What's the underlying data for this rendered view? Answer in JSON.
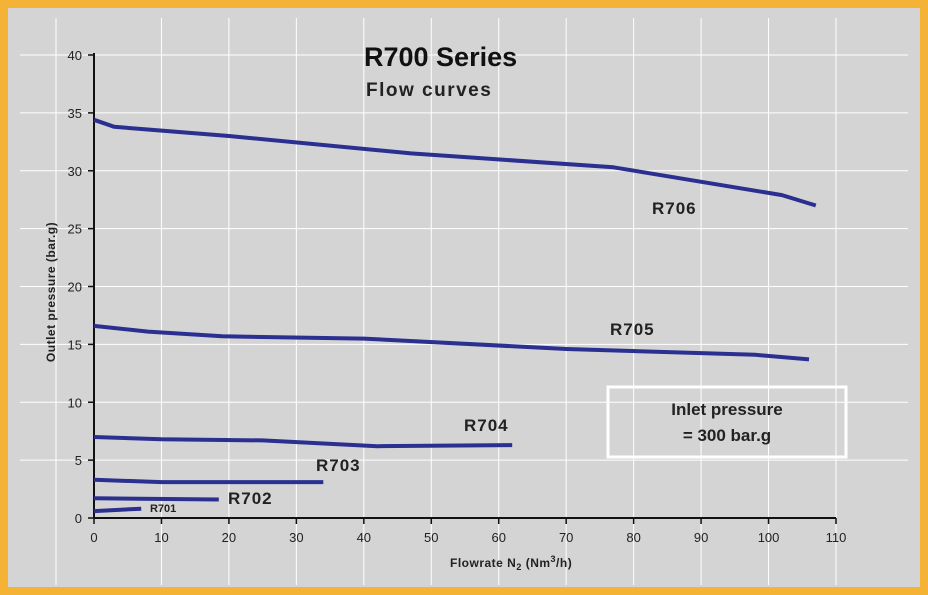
{
  "chart_data": {
    "type": "line",
    "title": "R700 Series",
    "subtitle": "Flow curves",
    "xlabel": "Flowrate N",
    "xlabel_subscript": "2",
    "xlabel_unit_prefix": " (Nm",
    "xlabel_unit_sup": "3",
    "xlabel_unit_suffix": "/h)",
    "ylabel": "Outlet pressure (bar.g)",
    "xlim": [
      0,
      110
    ],
    "ylim": [
      0,
      40
    ],
    "xticks": [
      0,
      10,
      20,
      30,
      40,
      50,
      60,
      70,
      80,
      90,
      100,
      110
    ],
    "yticks": [
      0,
      5,
      10,
      15,
      20,
      25,
      30,
      35,
      40
    ],
    "grid": true,
    "annotation": {
      "line1": "Inlet pressure",
      "line2": "= 300 bar.g"
    },
    "series": [
      {
        "name": "R706",
        "x": [
          0,
          3,
          20,
          47,
          77,
          102,
          107
        ],
        "y": [
          34.4,
          33.8,
          33.0,
          31.5,
          30.3,
          27.9,
          27.0
        ]
      },
      {
        "name": "R705",
        "x": [
          0,
          8,
          19,
          40,
          70,
          98,
          106
        ],
        "y": [
          16.6,
          16.1,
          15.7,
          15.5,
          14.6,
          14.1,
          13.7
        ]
      },
      {
        "name": "R704",
        "x": [
          0,
          10,
          25,
          42,
          62
        ],
        "y": [
          7.0,
          6.8,
          6.7,
          6.2,
          6.3
        ]
      },
      {
        "name": "R703",
        "x": [
          0,
          10,
          34
        ],
        "y": [
          3.3,
          3.1,
          3.1
        ]
      },
      {
        "name": "R702",
        "x": [
          0,
          18.5
        ],
        "y": [
          1.7,
          1.6
        ]
      },
      {
        "name": "R701",
        "x": [
          0,
          7
        ],
        "y": [
          0.6,
          0.8
        ]
      }
    ],
    "colors": {
      "line": "#2b2f8f",
      "background": "#d4d4d4",
      "border": "#f5b335",
      "grid": "#ffffff"
    }
  }
}
